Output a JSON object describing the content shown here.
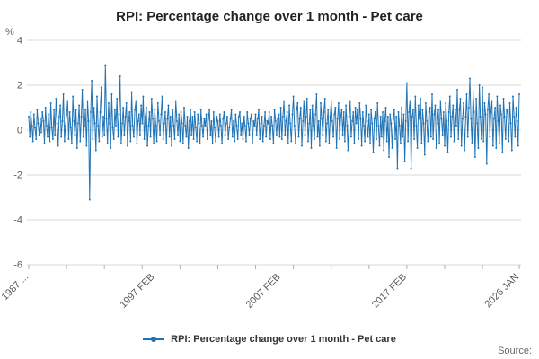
{
  "title": "RPI: Percentage change over 1 month - Pet care",
  "source_label": "Source:",
  "legend": {
    "label": "RPI: Percentage change over 1 month - Pet care",
    "color": "#2073b5"
  },
  "chart_data": {
    "type": "line",
    "title": "RPI: Percentage change over 1 month - Pet care",
    "xlabel": "",
    "ylabel": "%",
    "ylim": [
      -6,
      4
    ],
    "yticks": [
      4,
      2,
      0,
      -2,
      -4,
      -6
    ],
    "grid": true,
    "legend_position": "bottom",
    "x_description": "monthly observations from 1987 FEB to 2026 JAN",
    "x_tick_labels": [
      {
        "index": 0,
        "label": "1987 ..."
      },
      {
        "index": 120,
        "label": "1997 FEB"
      },
      {
        "index": 240,
        "label": "2007 FEB"
      },
      {
        "index": 360,
        "label": "2017 FEB"
      },
      {
        "index": 467,
        "label": "2026 JAN"
      }
    ],
    "minor_tick_every_months": 36,
    "series": [
      {
        "name": "RPI: Percentage change over 1 month - Pet care",
        "color": "#2073b5",
        "values": [
          0.6,
          -0.3,
          0.8,
          0.2,
          -0.5,
          0.7,
          0.1,
          -0.4,
          0.9,
          0.3,
          -0.2,
          0.5,
          -0.1,
          0.8,
          0.4,
          -0.6,
          1.0,
          0.2,
          -0.3,
          0.7,
          -0.5,
          1.2,
          0.1,
          -0.4,
          0.9,
          -0.2,
          1.4,
          0.3,
          -0.7,
          0.6,
          1.1,
          -0.3,
          0.4,
          1.6,
          -0.5,
          0.2,
          0.7,
          1.3,
          -0.4,
          0.8,
          0.1,
          -0.6,
          1.5,
          0.4,
          -0.2,
          0.9,
          -0.8,
          0.3,
          1.1,
          -0.5,
          0.6,
          1.8,
          -0.3,
          0.2,
          0.9,
          -0.7,
          1.3,
          0.4,
          -3.1,
          0.8,
          2.2,
          -0.4,
          1.0,
          0.3,
          -0.9,
          1.5,
          0.2,
          -0.5,
          0.8,
          1.9,
          -0.3,
          0.6,
          -0.2,
          2.9,
          0.5,
          -0.6,
          1.2,
          0.3,
          -0.8,
          1.6,
          0.1,
          -0.4,
          0.9,
          0.2,
          1.4,
          -0.3,
          0.7,
          2.4,
          -0.6,
          0.3,
          1.0,
          -0.2,
          0.6,
          1.2,
          -0.7,
          0.4,
          0.8,
          -0.5,
          1.7,
          0.2,
          -0.3,
          0.9,
          1.3,
          -0.6,
          0.4,
          0.7,
          -0.2,
          1.1,
          0.3,
          1.5,
          -0.4,
          0.6,
          1.0,
          -0.7,
          0.2,
          0.8,
          -0.3,
          1.4,
          0.5,
          -0.6,
          0.9,
          0.2,
          -0.5,
          1.2,
          0.4,
          -0.2,
          0.7,
          1.5,
          -0.4,
          0.3,
          0.8,
          -0.6,
          0.5,
          1.1,
          -0.3,
          0.6,
          -0.7,
          0.9,
          0.2,
          -0.4,
          1.3,
          0.4,
          -0.2,
          0.7,
          -0.5,
          0.8,
          0.3,
          -0.6,
          1.0,
          0.2,
          -0.3,
          0.6,
          -0.8,
          0.4,
          0.9,
          -0.2,
          0.6,
          -0.4,
          0.8,
          0.1,
          -0.5,
          0.7,
          0.3,
          -0.6,
          0.9,
          0.2,
          -0.3,
          0.5,
          0.2,
          0.7,
          -0.4,
          0.5,
          0.9,
          -0.2,
          0.4,
          -0.6,
          0.8,
          0.1,
          -0.5,
          0.6,
          0.4,
          -0.3,
          0.7,
          0.2,
          -0.6,
          0.5,
          0.8,
          -0.2,
          0.3,
          0.6,
          -0.4,
          0.1,
          0.5,
          0.9,
          -0.3,
          0.4,
          -0.5,
          0.7,
          0.2,
          -0.4,
          0.6,
          0.8,
          -0.2,
          0.3,
          -0.4,
          0.6,
          0.2,
          -0.5,
          0.8,
          0.3,
          -0.2,
          0.5,
          0.7,
          -0.6,
          0.4,
          0.2,
          0.7,
          -0.2,
          0.5,
          0.9,
          -0.4,
          0.3,
          0.6,
          -0.5,
          0.2,
          0.8,
          -0.3,
          0.4,
          0.3,
          0.8,
          -0.4,
          0.6,
          0.2,
          -0.6,
          0.9,
          0.4,
          -0.2,
          0.5,
          0.7,
          -0.3,
          1.0,
          -0.4,
          0.6,
          1.3,
          -0.2,
          0.4,
          0.8,
          -0.6,
          1.1,
          0.3,
          -0.5,
          0.7,
          1.5,
          0.2,
          -0.6,
          0.9,
          1.2,
          -0.3,
          0.5,
          1.0,
          -0.7,
          0.4,
          1.3,
          -0.2,
          0.6,
          1.4,
          -0.5,
          0.3,
          0.9,
          -0.8,
          1.1,
          0.2,
          -0.4,
          0.7,
          1.6,
          -0.3,
          0.4,
          -0.7,
          1.2,
          0.5,
          -0.2,
          0.8,
          1.4,
          -0.5,
          0.3,
          0.9,
          -0.6,
          0.6,
          1.3,
          0.4,
          -0.3,
          0.7,
          1.0,
          -0.8,
          0.5,
          1.2,
          -0.4,
          0.6,
          0.9,
          -0.2,
          0.8,
          -0.5,
          1.1,
          0.2,
          -0.9,
          0.6,
          1.3,
          -0.3,
          0.4,
          0.8,
          -0.6,
          1.0,
          0.3,
          0.9,
          -0.4,
          1.2,
          0.5,
          -0.7,
          0.8,
          0.2,
          -0.5,
          1.1,
          0.4,
          -0.3,
          0.7,
          -0.6,
          0.9,
          0.3,
          -1.0,
          0.5,
          0.8,
          -0.4,
          1.2,
          0.2,
          -0.7,
          0.6,
          -0.3,
          0.8,
          -0.9,
          0.4,
          1.0,
          -0.5,
          0.6,
          -1.2,
          0.7,
          0.3,
          -0.8,
          0.5,
          0.9,
          -0.4,
          0.6,
          -1.7,
          0.8,
          0.2,
          -0.6,
          1.0,
          -0.3,
          0.7,
          -1.4,
          0.4,
          2.1,
          -0.5,
          0.8,
          1.3,
          -1.7,
          0.6,
          0.9,
          -0.4,
          1.5,
          0.2,
          -0.8,
          1.1,
          0.5,
          1.4,
          -0.6,
          0.9,
          0.3,
          -1.1,
          1.2,
          0.4,
          -0.5,
          0.8,
          1.0,
          -0.3,
          1.6,
          -0.4,
          0.7,
          1.1,
          -0.8,
          0.3,
          0.9,
          -0.6,
          1.3,
          0.5,
          -0.2,
          0.8,
          -0.7,
          1.2,
          0.4,
          -1.0,
          0.8,
          1.5,
          -0.3,
          0.6,
          1.1,
          -0.5,
          0.9,
          0.2,
          1.8,
          -0.4,
          0.9,
          1.4,
          -0.7,
          0.5,
          1.2,
          -0.9,
          0.6,
          1.6,
          -0.3,
          1.0,
          2.3,
          0.5,
          -0.6,
          1.7,
          0.8,
          -1.2,
          1.4,
          0.3,
          -0.8,
          2.0,
          0.6,
          -0.4,
          1.9,
          -0.5,
          1.2,
          0.7,
          -1.5,
          0.9,
          1.6,
          -0.3,
          0.8,
          1.3,
          -0.7,
          0.5,
          1.0,
          -0.8,
          1.5,
          0.4,
          -0.6,
          1.1,
          0.7,
          -1.0,
          1.4,
          0.6,
          -0.4,
          0.9,
          0.8,
          -0.5,
          1.2,
          0.3,
          -0.9,
          1.5,
          0.6,
          -0.3,
          1.0,
          0.4,
          -0.7,
          1.6
        ]
      }
    ]
  }
}
